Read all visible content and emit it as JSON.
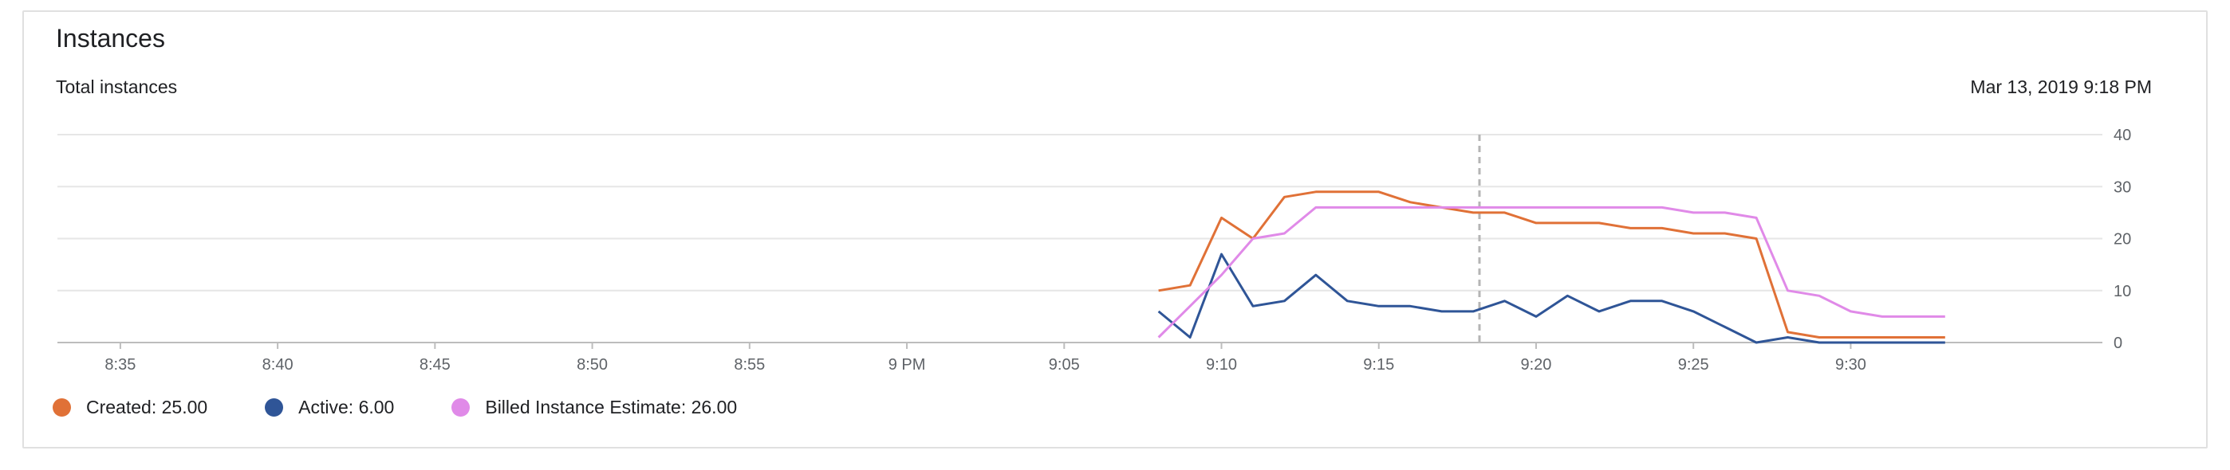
{
  "card": {
    "title": "Instances",
    "subtitle": "Total instances",
    "timestamp": "Mar 13, 2019 9:18 PM"
  },
  "colors": {
    "created": "#e07137",
    "active": "#2f5597",
    "billed": "#e08ae8",
    "grid": "#e6e6e6",
    "cursor": "#b5b5b5"
  },
  "legend": [
    {
      "key": "created",
      "label": "Created: 25.00",
      "color": "#e07137"
    },
    {
      "key": "active",
      "label": "Active: 6.00",
      "color": "#2f5597"
    },
    {
      "key": "billed",
      "label": "Billed Instance Estimate: 26.00",
      "color": "#e08ae8"
    }
  ],
  "chart_data": {
    "type": "line",
    "title": "Instances",
    "subtitle": "Total instances",
    "xlabel": "",
    "ylabel": "",
    "x_unit": "minutes after 8:33 PM",
    "xlim": [
      0,
      65
    ],
    "ylim": [
      0,
      40
    ],
    "y_ticks": [
      0,
      10,
      20,
      30,
      40
    ],
    "x_ticks": [
      {
        "t": 2,
        "label": "8:35"
      },
      {
        "t": 7,
        "label": "8:40"
      },
      {
        "t": 12,
        "label": "8:45"
      },
      {
        "t": 17,
        "label": "8:50"
      },
      {
        "t": 22,
        "label": "8:55"
      },
      {
        "t": 27,
        "label": "9 PM"
      },
      {
        "t": 32,
        "label": "9:05"
      },
      {
        "t": 37,
        "label": "9:10"
      },
      {
        "t": 42,
        "label": "9:15"
      },
      {
        "t": 47,
        "label": "9:20"
      },
      {
        "t": 52,
        "label": "9:25"
      },
      {
        "t": 57,
        "label": "9:30"
      }
    ],
    "cursor_t": 45.2,
    "grid": true,
    "legend_position": "bottom",
    "series": [
      {
        "key": "created",
        "x": [
          35,
          36,
          37,
          38,
          39,
          40,
          41,
          42,
          43,
          44,
          45,
          46,
          47,
          48,
          49,
          50,
          51,
          52,
          53,
          54,
          55,
          56,
          57,
          58,
          59,
          60
        ],
        "values": [
          10,
          11,
          24,
          20,
          28,
          29,
          29,
          29,
          27,
          26,
          25,
          25,
          23,
          23,
          23,
          22,
          22,
          21,
          21,
          20,
          2,
          1,
          1,
          1,
          1,
          1
        ]
      },
      {
        "key": "active",
        "x": [
          35,
          36,
          37,
          38,
          39,
          40,
          41,
          42,
          43,
          44,
          45,
          46,
          47,
          48,
          49,
          50,
          51,
          52,
          53,
          54,
          55,
          56,
          57,
          58,
          59,
          60
        ],
        "values": [
          6,
          1,
          17,
          7,
          8,
          13,
          8,
          7,
          7,
          6,
          6,
          8,
          5,
          9,
          6,
          8,
          8,
          6,
          3,
          0,
          1,
          0,
          0,
          0,
          0,
          0
        ]
      },
      {
        "key": "billed",
        "x": [
          35,
          36,
          37,
          38,
          39,
          40,
          41,
          42,
          43,
          44,
          45,
          46,
          47,
          48,
          49,
          50,
          51,
          52,
          53,
          54,
          55,
          56,
          57,
          58,
          59,
          60
        ],
        "values": [
          1,
          7,
          13,
          20,
          21,
          26,
          26,
          26,
          26,
          26,
          26,
          26,
          26,
          26,
          26,
          26,
          26,
          25,
          25,
          24,
          10,
          9,
          6,
          5,
          5,
          5
        ]
      }
    ]
  }
}
